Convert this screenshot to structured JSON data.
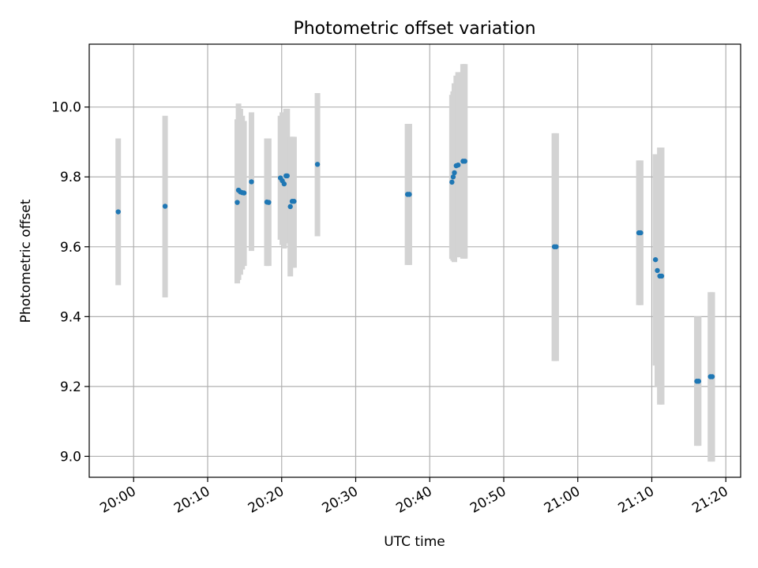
{
  "chart_data": {
    "type": "scatter",
    "title": "Photometric offset variation",
    "xlabel": "UTC time",
    "ylabel": "Photometric offset",
    "grid": true,
    "error_bar_color": "#d3d3d3",
    "point_color": "#1f77b4",
    "xlim": [
      "19:54",
      "21:22"
    ],
    "ylim": [
      8.94,
      10.18
    ],
    "x_ticks": [
      "20:00",
      "20:10",
      "20:20",
      "20:30",
      "20:40",
      "20:50",
      "21:00",
      "21:10",
      "21:20"
    ],
    "y_ticks": [
      "9.0",
      "9.2",
      "9.4",
      "9.6",
      "9.8",
      "10.0"
    ],
    "points": [
      {
        "x": "19:57:55",
        "y": 9.7,
        "err_low": 9.49,
        "err_high": 9.91
      },
      {
        "x": "20:04:15",
        "y": 9.716,
        "err_low": 9.455,
        "err_high": 9.975
      },
      {
        "x": "20:14:00",
        "y": 9.727,
        "err_low": 9.495,
        "err_high": 9.965
      },
      {
        "x": "20:14:10",
        "y": 9.762,
        "err_low": 9.505,
        "err_high": 10.01
      },
      {
        "x": "20:14:25",
        "y": 9.757,
        "err_low": 9.52,
        "err_high": 9.995
      },
      {
        "x": "20:14:40",
        "y": 9.755,
        "err_low": 9.535,
        "err_high": 9.975
      },
      {
        "x": "20:14:55",
        "y": 9.754,
        "err_low": 9.545,
        "err_high": 9.96
      },
      {
        "x": "20:15:55",
        "y": 9.786,
        "err_low": 9.588,
        "err_high": 9.985
      },
      {
        "x": "20:18:00",
        "y": 9.728,
        "err_low": 9.545,
        "err_high": 9.91
      },
      {
        "x": "20:18:15",
        "y": 9.727,
        "err_low": 9.545,
        "err_high": 9.91
      },
      {
        "x": "20:19:50",
        "y": 9.797,
        "err_low": 9.62,
        "err_high": 9.975
      },
      {
        "x": "20:20:05",
        "y": 9.789,
        "err_low": 9.605,
        "err_high": 9.985
      },
      {
        "x": "20:20:20",
        "y": 9.78,
        "err_low": 9.595,
        "err_high": 9.965
      },
      {
        "x": "20:20:35",
        "y": 9.803,
        "err_low": 9.61,
        "err_high": 9.995
      },
      {
        "x": "20:20:45",
        "y": 9.803,
        "err_low": 9.61,
        "err_high": 9.995
      },
      {
        "x": "20:21:10",
        "y": 9.715,
        "err_low": 9.515,
        "err_high": 9.915
      },
      {
        "x": "20:21:25",
        "y": 9.73,
        "err_low": 9.54,
        "err_high": 9.915
      },
      {
        "x": "20:21:40",
        "y": 9.73,
        "err_low": 9.54,
        "err_high": 9.915
      },
      {
        "x": "20:24:50",
        "y": 9.836,
        "err_low": 9.63,
        "err_high": 10.04
      },
      {
        "x": "20:37:00",
        "y": 9.75,
        "err_low": 9.548,
        "err_high": 9.952
      },
      {
        "x": "20:37:15",
        "y": 9.75,
        "err_low": 9.548,
        "err_high": 9.952
      },
      {
        "x": "20:43:00",
        "y": 9.785,
        "err_low": 9.565,
        "err_high": 10.035
      },
      {
        "x": "20:43:10",
        "y": 9.8,
        "err_low": 9.56,
        "err_high": 10.045
      },
      {
        "x": "20:43:20",
        "y": 9.812,
        "err_low": 9.556,
        "err_high": 10.068
      },
      {
        "x": "20:43:35",
        "y": 9.832,
        "err_low": 9.57,
        "err_high": 10.09
      },
      {
        "x": "20:43:50",
        "y": 9.834,
        "err_low": 9.57,
        "err_high": 10.1
      },
      {
        "x": "20:44:30",
        "y": 9.845,
        "err_low": 9.566,
        "err_high": 10.123
      },
      {
        "x": "20:44:45",
        "y": 9.845,
        "err_low": 9.566,
        "err_high": 10.123
      },
      {
        "x": "20:56:50",
        "y": 9.6,
        "err_low": 9.273,
        "err_high": 9.925
      },
      {
        "x": "20:57:05",
        "y": 9.6,
        "err_low": 9.273,
        "err_high": 9.925
      },
      {
        "x": "21:08:15",
        "y": 9.64,
        "err_low": 9.433,
        "err_high": 9.847
      },
      {
        "x": "21:08:30",
        "y": 9.64,
        "err_low": 9.433,
        "err_high": 9.847
      },
      {
        "x": "21:10:30",
        "y": 9.563,
        "err_low": 9.26,
        "err_high": 9.865
      },
      {
        "x": "21:10:45",
        "y": 9.532,
        "err_low": 9.2,
        "err_high": 9.865
      },
      {
        "x": "21:11:05",
        "y": 9.516,
        "err_low": 9.148,
        "err_high": 9.884
      },
      {
        "x": "21:11:20",
        "y": 9.516,
        "err_low": 9.148,
        "err_high": 9.884
      },
      {
        "x": "21:16:05",
        "y": 9.215,
        "err_low": 9.03,
        "err_high": 9.4
      },
      {
        "x": "21:16:20",
        "y": 9.215,
        "err_low": 9.03,
        "err_high": 9.4
      },
      {
        "x": "21:17:55",
        "y": 9.228,
        "err_low": 8.985,
        "err_high": 9.47
      },
      {
        "x": "21:18:10",
        "y": 9.228,
        "err_low": 8.985,
        "err_high": 9.47
      }
    ]
  }
}
